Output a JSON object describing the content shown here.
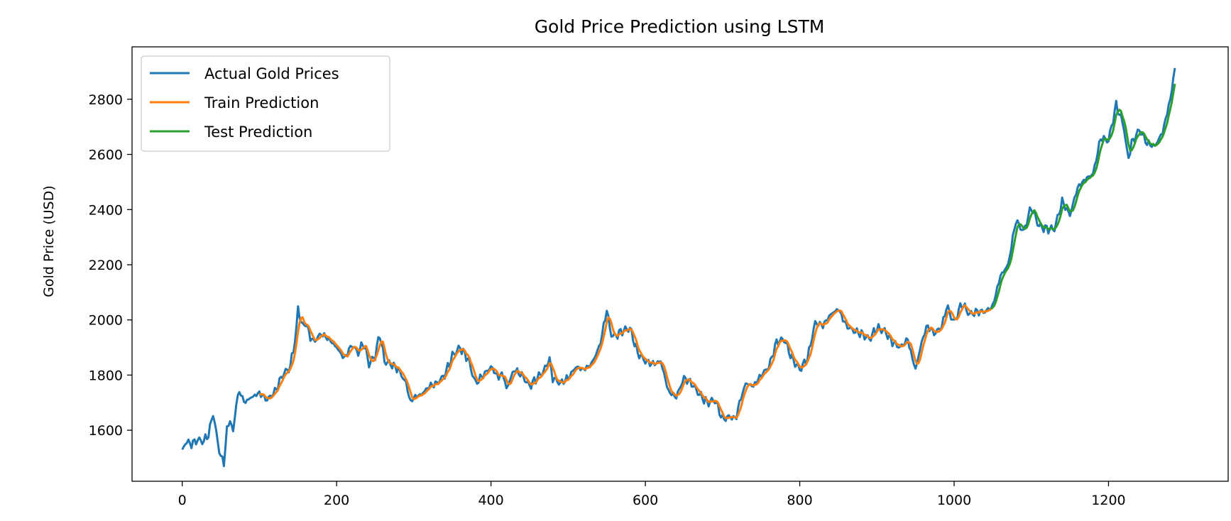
{
  "chart_data": {
    "type": "line",
    "title": "Gold Price Prediction using LSTM",
    "xlabel": "",
    "ylabel": "Gold Price (USD)",
    "xlim": [
      -65,
      1355
    ],
    "ylim": [
      1415,
      2990
    ],
    "xticks": [
      0,
      200,
      400,
      600,
      800,
      1000,
      1200
    ],
    "yticks": [
      1600,
      1800,
      2000,
      2200,
      2400,
      2600,
      2800
    ],
    "grid": false,
    "legend_position": "top-left",
    "legend": [
      "Actual Gold Prices",
      "Train Prediction",
      "Test Prediction"
    ],
    "colors": {
      "actual": "#1f77b4",
      "train": "#ff7f0e",
      "test": "#2ca02c"
    },
    "anchors": [
      [
        0,
        1525
      ],
      [
        5,
        1560
      ],
      [
        12,
        1550
      ],
      [
        20,
        1565
      ],
      [
        28,
        1560
      ],
      [
        35,
        1590
      ],
      [
        40,
        1665
      ],
      [
        44,
        1590
      ],
      [
        50,
        1500
      ],
      [
        54,
        1485
      ],
      [
        58,
        1600
      ],
      [
        62,
        1640
      ],
      [
        66,
        1590
      ],
      [
        70,
        1700
      ],
      [
        75,
        1745
      ],
      [
        80,
        1700
      ],
      [
        90,
        1720
      ],
      [
        100,
        1735
      ],
      [
        110,
        1710
      ],
      [
        120,
        1740
      ],
      [
        130,
        1800
      ],
      [
        140,
        1830
      ],
      [
        148,
        1960
      ],
      [
        150,
        2050
      ],
      [
        155,
        1975
      ],
      [
        160,
        1990
      ],
      [
        165,
        1945
      ],
      [
        170,
        1920
      ],
      [
        180,
        1950
      ],
      [
        190,
        1930
      ],
      [
        200,
        1900
      ],
      [
        210,
        1860
      ],
      [
        220,
        1910
      ],
      [
        228,
        1880
      ],
      [
        235,
        1920
      ],
      [
        242,
        1840
      ],
      [
        250,
        1870
      ],
      [
        256,
        1950
      ],
      [
        262,
        1850
      ],
      [
        270,
        1840
      ],
      [
        280,
        1820
      ],
      [
        290,
        1770
      ],
      [
        296,
        1700
      ],
      [
        300,
        1720
      ],
      [
        310,
        1730
      ],
      [
        320,
        1760
      ],
      [
        330,
        1770
      ],
      [
        340,
        1800
      ],
      [
        350,
        1870
      ],
      [
        360,
        1900
      ],
      [
        370,
        1860
      ],
      [
        380,
        1770
      ],
      [
        390,
        1800
      ],
      [
        400,
        1830
      ],
      [
        410,
        1790
      ],
      [
        415,
        1810
      ],
      [
        420,
        1750
      ],
      [
        430,
        1820
      ],
      [
        440,
        1800
      ],
      [
        450,
        1760
      ],
      [
        460,
        1790
      ],
      [
        470,
        1820
      ],
      [
        475,
        1865
      ],
      [
        480,
        1790
      ],
      [
        490,
        1770
      ],
      [
        500,
        1790
      ],
      [
        510,
        1830
      ],
      [
        520,
        1820
      ],
      [
        530,
        1840
      ],
      [
        540,
        1900
      ],
      [
        545,
        1960
      ],
      [
        550,
        2040
      ],
      [
        555,
        1950
      ],
      [
        560,
        1940
      ],
      [
        570,
        1960
      ],
      [
        580,
        1970
      ],
      [
        590,
        1880
      ],
      [
        600,
        1850
      ],
      [
        610,
        1840
      ],
      [
        620,
        1850
      ],
      [
        630,
        1740
      ],
      [
        640,
        1720
      ],
      [
        650,
        1790
      ],
      [
        660,
        1770
      ],
      [
        670,
        1730
      ],
      [
        680,
        1700
      ],
      [
        690,
        1710
      ],
      [
        700,
        1640
      ],
      [
        710,
        1650
      ],
      [
        717,
        1640
      ],
      [
        722,
        1700
      ],
      [
        730,
        1770
      ],
      [
        740,
        1760
      ],
      [
        750,
        1800
      ],
      [
        760,
        1830
      ],
      [
        770,
        1920
      ],
      [
        780,
        1930
      ],
      [
        790,
        1860
      ],
      [
        800,
        1820
      ],
      [
        810,
        1860
      ],
      [
        820,
        1990
      ],
      [
        830,
        1980
      ],
      [
        840,
        2020
      ],
      [
        850,
        2040
      ],
      [
        860,
        1980
      ],
      [
        870,
        1960
      ],
      [
        880,
        1950
      ],
      [
        890,
        1930
      ],
      [
        900,
        1970
      ],
      [
        910,
        1960
      ],
      [
        920,
        1920
      ],
      [
        930,
        1900
      ],
      [
        940,
        1930
      ],
      [
        945,
        1870
      ],
      [
        950,
        1820
      ],
      [
        958,
        1920
      ],
      [
        965,
        1980
      ],
      [
        975,
        1950
      ],
      [
        985,
        1980
      ],
      [
        990,
        2050
      ],
      [
        1000,
        1990
      ],
      [
        1010,
        2060
      ],
      [
        1020,
        2020
      ],
      [
        1030,
        2030
      ],
      [
        1040,
        2030
      ],
      [
        1050,
        2050
      ],
      [
        1060,
        2160
      ],
      [
        1070,
        2200
      ],
      [
        1080,
        2360
      ],
      [
        1090,
        2320
      ],
      [
        1100,
        2410
      ],
      [
        1110,
        2340
      ],
      [
        1120,
        2330
      ],
      [
        1130,
        2330
      ],
      [
        1140,
        2430
      ],
      [
        1150,
        2380
      ],
      [
        1160,
        2480
      ],
      [
        1170,
        2510
      ],
      [
        1180,
        2530
      ],
      [
        1190,
        2660
      ],
      [
        1200,
        2650
      ],
      [
        1210,
        2780
      ],
      [
        1220,
        2700
      ],
      [
        1225,
        2580
      ],
      [
        1230,
        2640
      ],
      [
        1240,
        2690
      ],
      [
        1250,
        2640
      ],
      [
        1260,
        2630
      ],
      [
        1270,
        2680
      ],
      [
        1280,
        2800
      ],
      [
        1287,
        2930
      ]
    ],
    "train_range": [
      100,
      1048
    ],
    "test_range": [
      1048,
      1287
    ]
  }
}
